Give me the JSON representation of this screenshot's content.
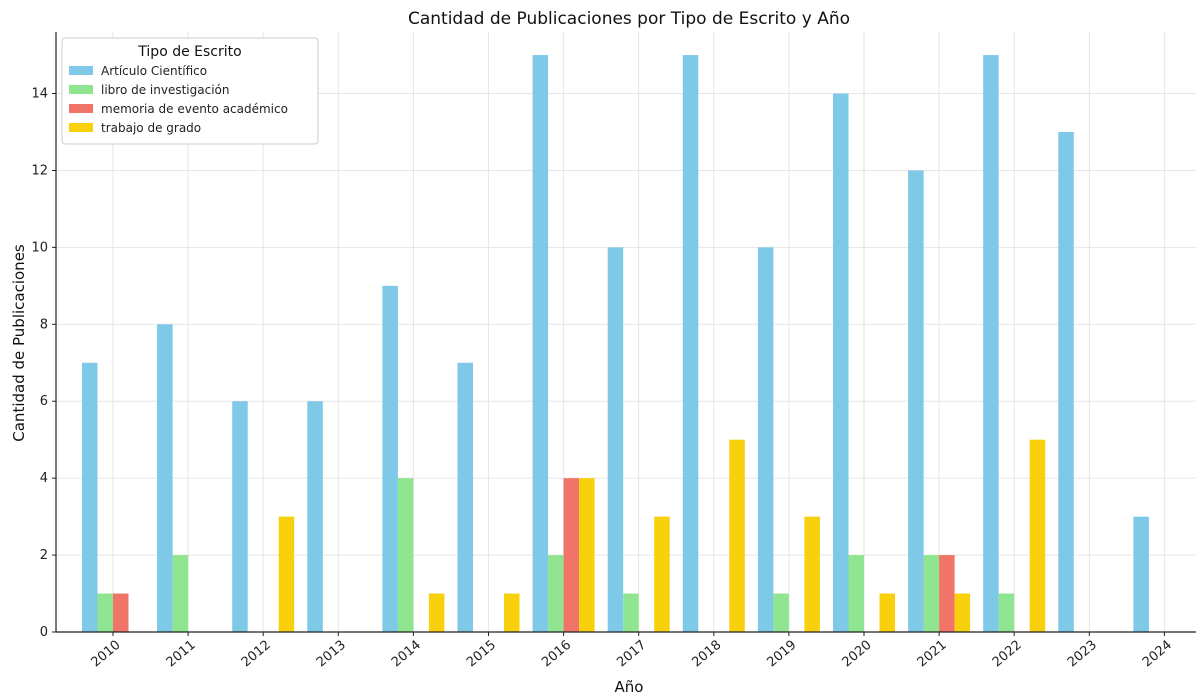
{
  "chart_data": {
    "type": "bar",
    "title": "Cantidad de Publicaciones por Tipo de Escrito y Año",
    "xlabel": "Año",
    "ylabel": "Cantidad de Publicaciones",
    "categories": [
      "2010",
      "2011",
      "2012",
      "2013",
      "2014",
      "2015",
      "2016",
      "2017",
      "2018",
      "2019",
      "2020",
      "2021",
      "2022",
      "2023",
      "2024"
    ],
    "ylim": [
      0,
      15.6
    ],
    "yticks": [
      0,
      2,
      4,
      6,
      8,
      10,
      12,
      14
    ],
    "grid": true,
    "legend": {
      "title": "Tipo de Escrito",
      "placement": "top-left"
    },
    "series": [
      {
        "name": "Artículo Científico",
        "color": "#7ec8e8",
        "values": [
          7,
          8,
          6,
          6,
          9,
          7,
          15,
          10,
          15,
          10,
          14,
          12,
          15,
          13,
          3
        ]
      },
      {
        "name": "libro de investigación",
        "color": "#90e590",
        "values": [
          1,
          2,
          0,
          0,
          4,
          0,
          2,
          1,
          0,
          1,
          2,
          2,
          1,
          0,
          0
        ]
      },
      {
        "name": "memoria de evento académico",
        "color": "#f07468",
        "values": [
          1,
          0,
          0,
          0,
          0,
          0,
          4,
          0,
          0,
          0,
          0,
          2,
          0,
          0,
          0
        ]
      },
      {
        "name": "trabajo de grado",
        "color": "#f8d00c",
        "values": [
          0,
          0,
          3,
          0,
          1,
          1,
          4,
          3,
          5,
          3,
          1,
          1,
          5,
          0,
          0
        ]
      }
    ]
  }
}
